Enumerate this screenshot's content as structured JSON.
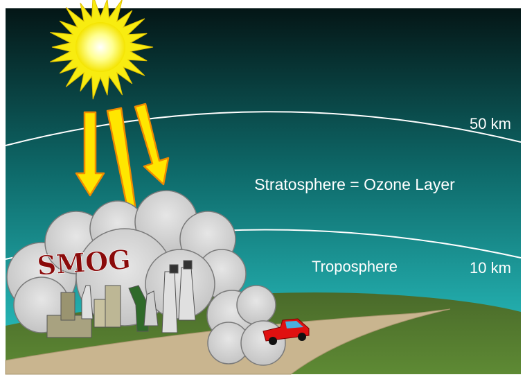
{
  "labels": {
    "upper_altitude": "50 km",
    "stratosphere": "Stratosphere = Ozone Layer",
    "troposphere": "Troposphere",
    "lower_altitude": "10 km",
    "smog": "SMOG"
  }
}
